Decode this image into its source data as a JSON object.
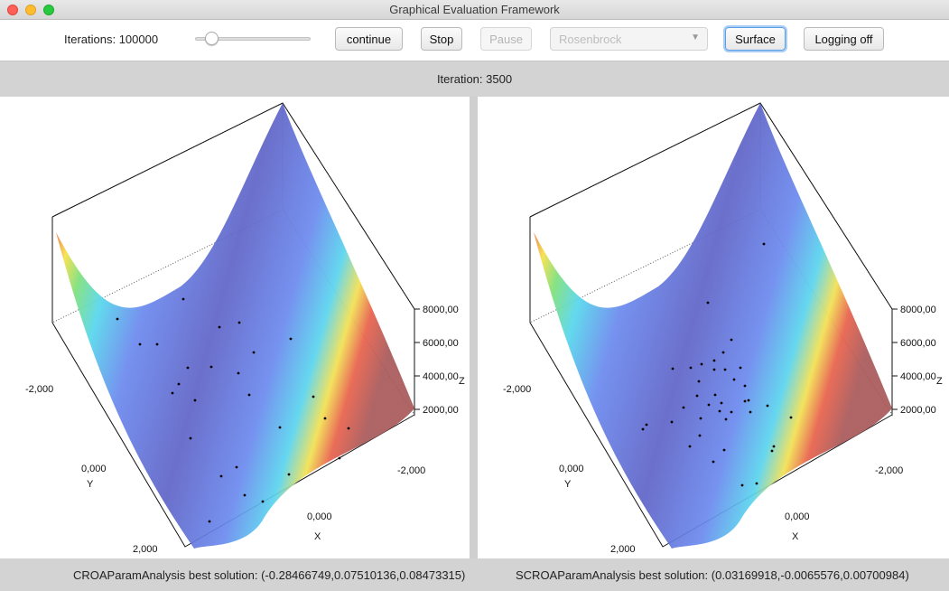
{
  "window": {
    "title": "Graphical Evaluation Framework"
  },
  "toolbar": {
    "iterations_label": "Iterations: 100000",
    "slider_fraction": 0.1,
    "continue_label": "continue",
    "stop_label": "Stop",
    "pause_label": "Pause",
    "function_select": "Rosenbrock",
    "surface_label": "Surface",
    "logging_label": "Logging off"
  },
  "iteration_text": "Iteration: 3500",
  "plots": [
    {
      "z_ticks": [
        "8000,00",
        "6000,00",
        "4000,00",
        "2000,00"
      ],
      "z_label": "Z",
      "y_ticks": [
        "-2,000",
        "0,000",
        "2,000"
      ],
      "y_label": "Y",
      "x_ticks": [
        "-2,000",
        "0,000"
      ],
      "x_label": "X"
    },
    {
      "z_ticks": [
        "8000,00",
        "6000,00",
        "4000,00",
        "2000,00"
      ],
      "z_label": "Z",
      "y_ticks": [
        "-2,000",
        "0,000",
        "2,000"
      ],
      "y_label": "Y",
      "x_ticks": [
        "-2,000",
        "0,000"
      ],
      "x_label": "X"
    }
  ],
  "status": {
    "croa": "CROAParamAnalysis best solution: (-0.28466749,0.07510136,0.08473315)",
    "scroa": "SCROAParamAnalysis best solution: (0.03169918,-0.0065576,0.00700984)"
  },
  "colors": {
    "surface_high": "#a05a5a",
    "surface_low": "#6b6fc8",
    "accent": "#5a9ee6"
  }
}
